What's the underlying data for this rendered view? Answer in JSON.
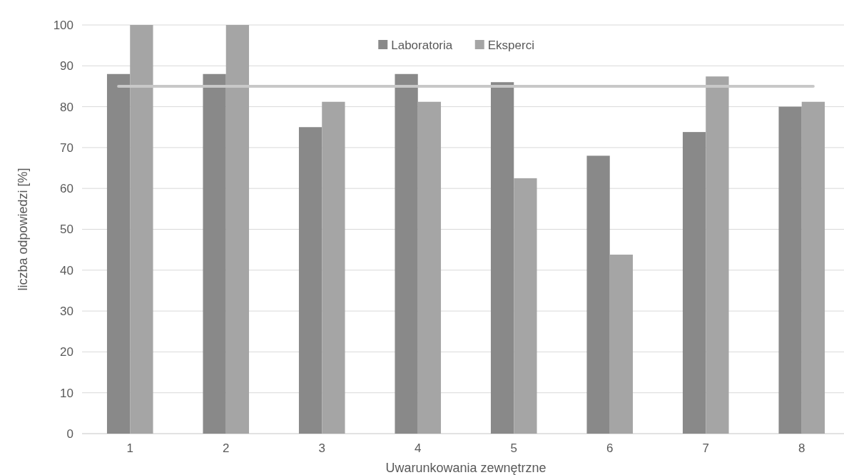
{
  "chart_data": {
    "type": "bar",
    "xlabel": "Uwarunkowania zewnętrzne",
    "ylabel": "liczba odpowiedzi [%]",
    "categories": [
      "1",
      "2",
      "3",
      "4",
      "5",
      "6",
      "7",
      "8"
    ],
    "series": [
      {
        "name": "Laboratoria",
        "color": "#898989",
        "values": [
          88,
          88,
          75,
          88,
          86,
          68,
          73.8,
          80
        ]
      },
      {
        "name": "Eksperci",
        "color": "#a5a5a5",
        "values": [
          100,
          100,
          81.2,
          81.2,
          62.5,
          43.8,
          87.4,
          81.2
        ]
      }
    ],
    "ylim": [
      0,
      100
    ],
    "yticks": [
      0,
      10,
      20,
      30,
      40,
      50,
      60,
      70,
      80,
      90,
      100
    ],
    "grid": "y",
    "legend": "top",
    "ref_lines": [
      {
        "axis": "y",
        "value": 85,
        "color": "#c8c8c8"
      }
    ]
  }
}
